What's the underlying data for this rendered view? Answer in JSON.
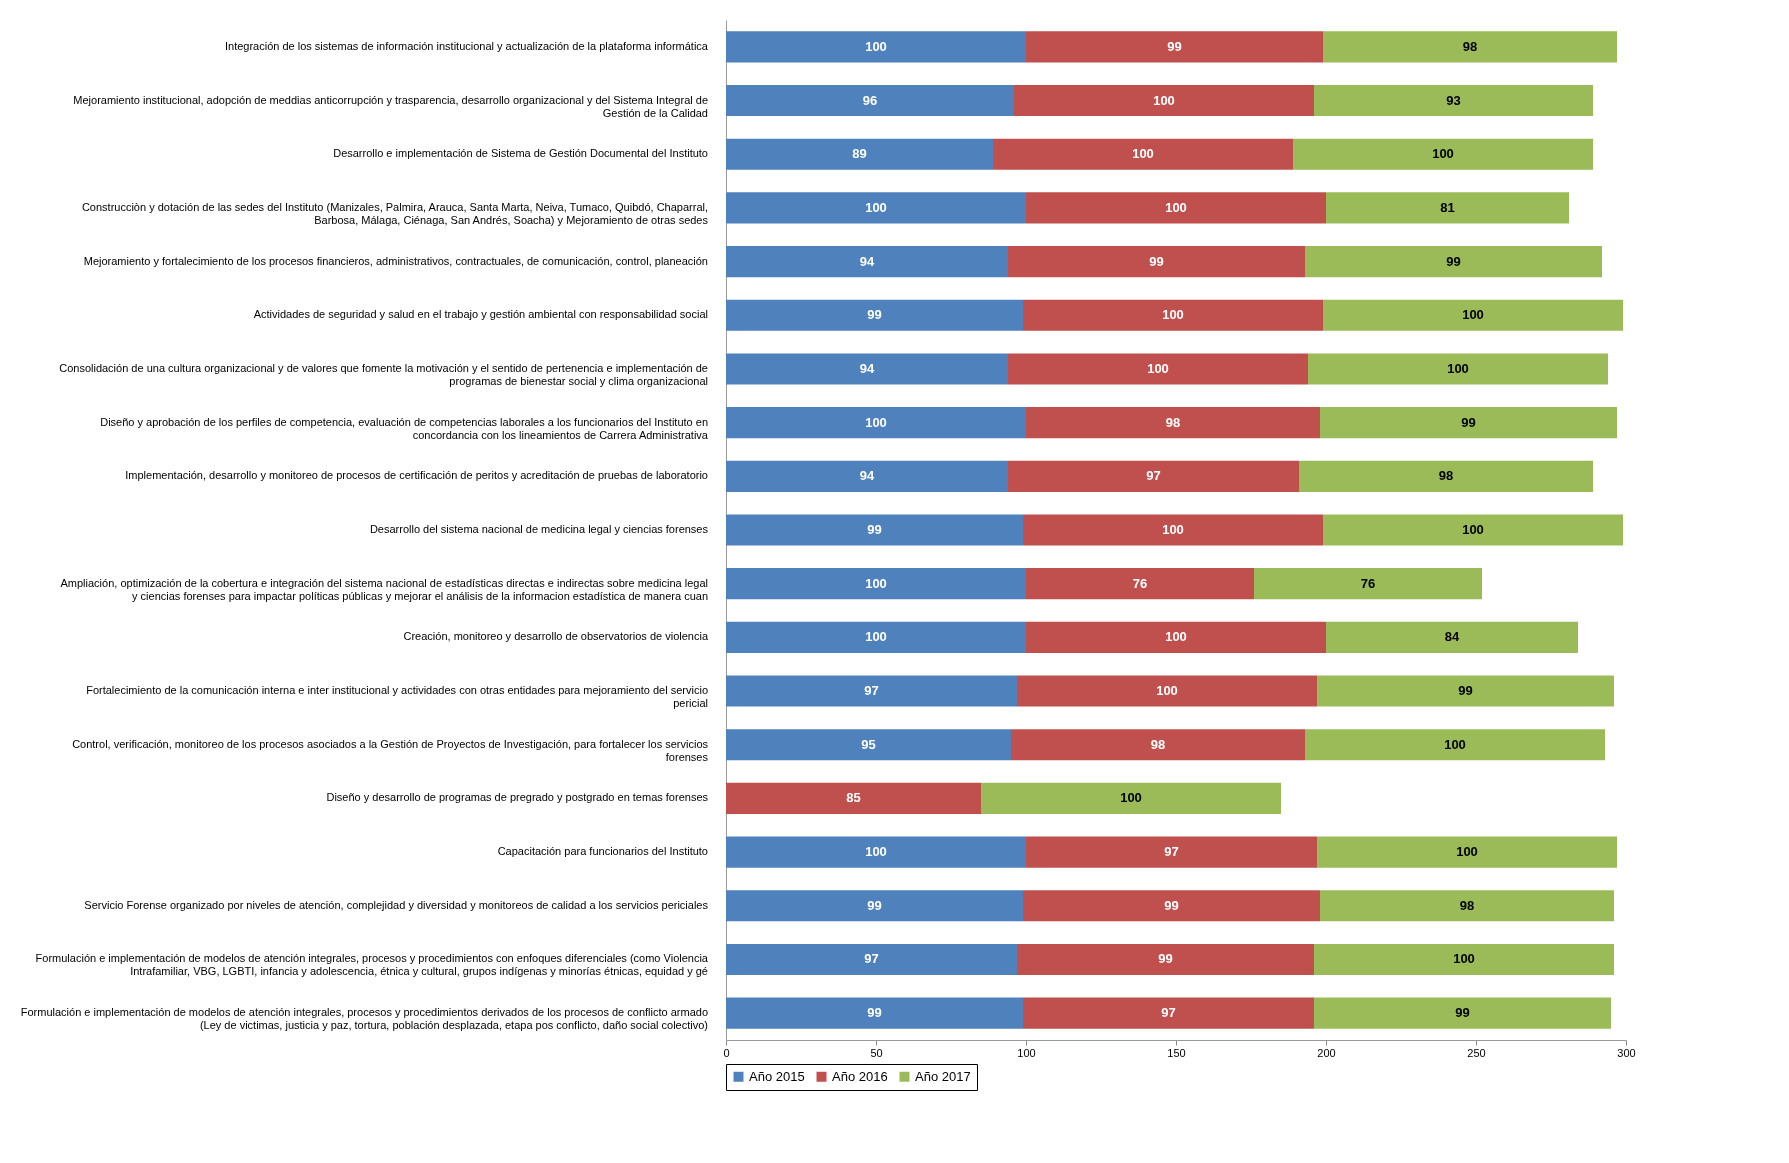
{
  "chart_data": {
    "type": "bar",
    "orientation": "horizontal",
    "stacked": true,
    "legend": "bottom",
    "grid": false,
    "categories": [
      "Integración de los sistemas de información institucional y actualización de la plataforma informática",
      "Mejoramiento institucional, adopción de meddias anticorrupción y trasparencia, desarrollo organizacional y del Sistema Integral de Gestión de la Calidad",
      "Desarrollo e implementación de Sistema de Gestión Documental del Instituto",
      "Construcciòn  y dotación de las sedes del Instituto (Manizales, Palmira, Arauca, Santa Marta, Neiva, Tumaco, Quibdó, Chaparral, Barbosa, Málaga, Ciénaga, San Andrés, Soacha) y Mejoramiento de otras sedes",
      "Mejoramiento y fortalecimiento de los procesos financieros, administrativos, contractuales, de comunicación, control, planeación",
      "Actividades de seguridad y salud en el trabajo y gestión ambiental con responsabilidad social",
      "Consolidación de una cultura organizacional y de valores que fomente la motivación y el sentido de pertenencia e implementación de programas de bienestar social y clima organizacional",
      "Diseño y aprobación de los perfiles de competencia,  evaluación de competencias laborales a los funcionarios del Instituto en concordancia con los lineamientos de Carrera Administrativa",
      "Implementación, desarrollo y monitoreo de procesos de certificación de peritos y acreditación de pruebas de laboratorio",
      "Desarrollo del sistema nacional de medicina legal y ciencias forenses",
      "Ampliación, optimización de la cobertura  e integración del sistema nacional de estadísticas directas e indirectas sobre medicina legal y ciencias forenses para impactar políticas públicas y mejorar el análisis de la informacion estadística de manera cuan",
      "Creación, monitoreo y desarrollo de observatorios de violencia",
      "Fortalecimiento de la comunicación interna e inter institucional y actividades con otras entidades para mejoramiento del servicio pericial",
      "Control, verificación, monitoreo de los procesos asociados a la Gestión de Proyectos de Investigación, para fortalecer los servicios forenses",
      "Diseño y desarrollo de programas de pregrado y postgrado en temas forenses",
      "Capacitación para funcionarios del Instituto",
      "Servicio Forense organizado por niveles de atención, complejidad y diversidad y monitoreos de calidad a los servicios periciales",
      "Formulación e implementación de modelos de atención integrales, procesos y procedimientos  con enfoques diferenciales  (como Violencia Intrafamiliar, VBG, LGBTI, infancia y adolescencia, étnica y cultural, grupos indígenas y minorías étnicas, equidad y gé",
      "Formulación e implementación de modelos de atención integrales, procesos y procedimientos derivados de los procesos de conflicto armado (Ley de victimas, justicia y paz, tortura, población desplazada,  etapa pos conflicto,  daño social colectivo)"
    ],
    "series": [
      {
        "name": "Año 2015",
        "color": "#4f81bd",
        "values": [
          100,
          96,
          89,
          100,
          94,
          99,
          94,
          100,
          94,
          99,
          100,
          100,
          97,
          95,
          0,
          100,
          99,
          97,
          99
        ],
        "value_labels": [
          "100",
          "96",
          "89",
          "100",
          "94",
          "99",
          "94",
          "100",
          "94",
          "99",
          "100",
          "100",
          "97",
          "95",
          null,
          "100",
          "99",
          "97",
          "99"
        ]
      },
      {
        "name": "Año 2016",
        "color": "#c0504d",
        "values": [
          99,
          100,
          100,
          100,
          99,
          100,
          100,
          98,
          97,
          100,
          76,
          100,
          100,
          98,
          85,
          97,
          99,
          99,
          97
        ],
        "value_labels": [
          "99",
          "100",
          "100",
          "100",
          "99",
          "100",
          "100",
          "98",
          "97",
          "100",
          "76",
          "100",
          "100",
          "98",
          "85",
          "97",
          "99",
          "99",
          "97"
        ]
      },
      {
        "name": "Año 2017",
        "color": "#9bbb59",
        "values": [
          98,
          93,
          100,
          81,
          99,
          100,
          100,
          99,
          98,
          100,
          76,
          84,
          99,
          100,
          100,
          100,
          98,
          100,
          99
        ],
        "value_labels": [
          "98",
          "93",
          "100",
          "81",
          "99",
          "100",
          "100",
          "99",
          "98",
          "100",
          "76",
          "84",
          "99",
          "100",
          "100",
          "100",
          "98",
          "100",
          "99"
        ]
      }
    ],
    "xlim": [
      0,
      300
    ],
    "xticks": [
      0,
      50,
      100,
      150,
      200,
      250,
      300
    ]
  }
}
